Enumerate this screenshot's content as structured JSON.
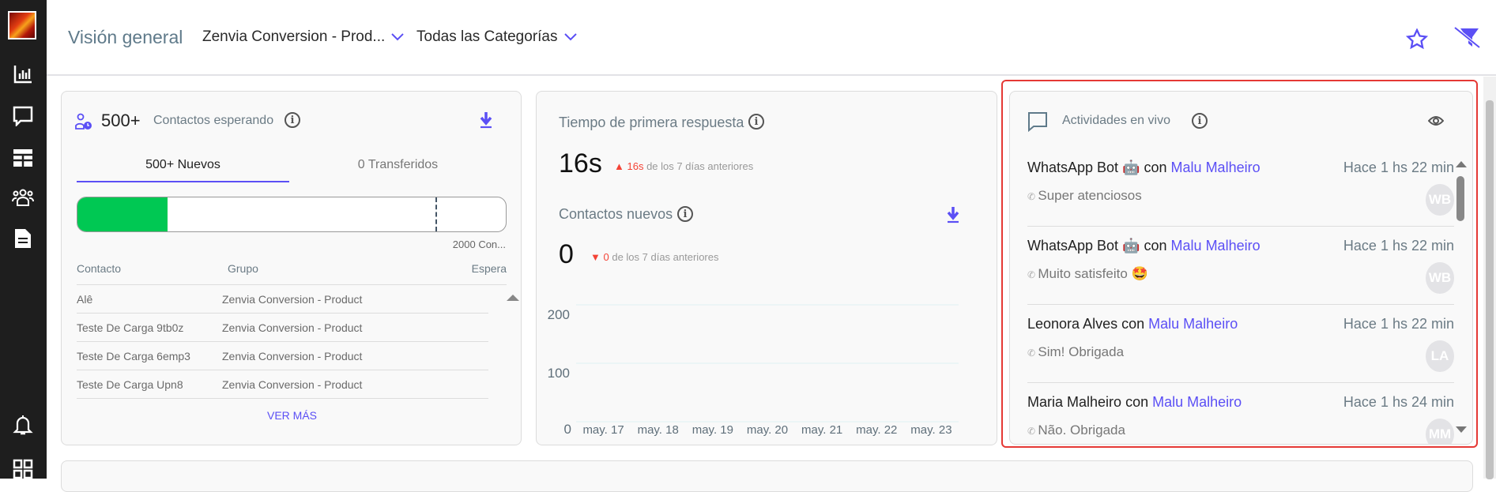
{
  "header": {
    "title": "Visión general",
    "group_dropdown": "Zenvia Conversion - Prod...",
    "category_dropdown": "Todas las Categorías"
  },
  "sidebar": {
    "items": [
      "reports-icon",
      "chat-icon",
      "dashboard-icon",
      "contacts-icon",
      "document-icon",
      "bell-icon",
      "apps-icon"
    ]
  },
  "waiting": {
    "count": "500+",
    "label": "Contactos esperando",
    "tabs": [
      "500+ Nuevos",
      "0 Transferidos"
    ],
    "progress_fraction": 0.21,
    "limit_label": "2000 Con...",
    "columns": [
      "Contacto",
      "Grupo",
      "Espera"
    ],
    "rows": [
      [
        "Alê",
        "Zenvia Conversion - Product",
        ""
      ],
      [
        "Teste De Carga 9tb0z",
        "Zenvia Conversion - Product",
        ""
      ],
      [
        "Teste De Carga 6emp3",
        "Zenvia Conversion - Product",
        ""
      ],
      [
        "Teste De Carga Upn8",
        "Zenvia Conversion - Product",
        ""
      ]
    ],
    "more": "VER MÁS"
  },
  "metrics": {
    "frt_title": "Tiempo de primera respuesta",
    "frt_value": "16s",
    "frt_delta": "16s",
    "frt_suffix": "de los 7 días anteriores",
    "new_title": "Contactos nuevos",
    "new_value": "0",
    "new_delta": "0",
    "new_suffix": "de los 7 días anteriores"
  },
  "chart_data": {
    "type": "line",
    "categories": [
      "may. 17",
      "may. 18",
      "may. 19",
      "may. 20",
      "may. 21",
      "may. 22",
      "may. 23"
    ],
    "values": [
      0,
      0,
      0,
      0,
      0,
      0,
      0
    ],
    "yticks": [
      "0",
      "100",
      "200"
    ],
    "ylim": [
      0,
      200
    ],
    "grid": true
  },
  "live": {
    "title": "Actividades en vivo",
    "items": [
      {
        "contact": "WhatsApp Bot 🤖",
        "con": "con",
        "agent": "Malu Malheiro",
        "time": "Hace 1 hs 22 min",
        "message": "Super atenciosos",
        "initials": "WB"
      },
      {
        "contact": "WhatsApp Bot 🤖",
        "con": "con",
        "agent": "Malu Malheiro",
        "time": "Hace 1 hs 22 min",
        "message": "Muito satisfeito 🤩",
        "initials": "WB"
      },
      {
        "contact": "Leonora Alves",
        "con": "con",
        "agent": "Malu Malheiro",
        "time": "Hace 1 hs 22 min",
        "message": "Sim! Obrigada",
        "initials": "LA"
      },
      {
        "contact": "Maria Malheiro",
        "con": "con",
        "agent": "Malu Malheiro",
        "time": "Hace 1 hs 24 min",
        "message": "Não. Obrigada",
        "initials": "MM"
      }
    ]
  },
  "colors": {
    "accent": "#5b4ff5",
    "success": "#00c853",
    "danger": "#f44336",
    "highlight": "#e53935"
  }
}
